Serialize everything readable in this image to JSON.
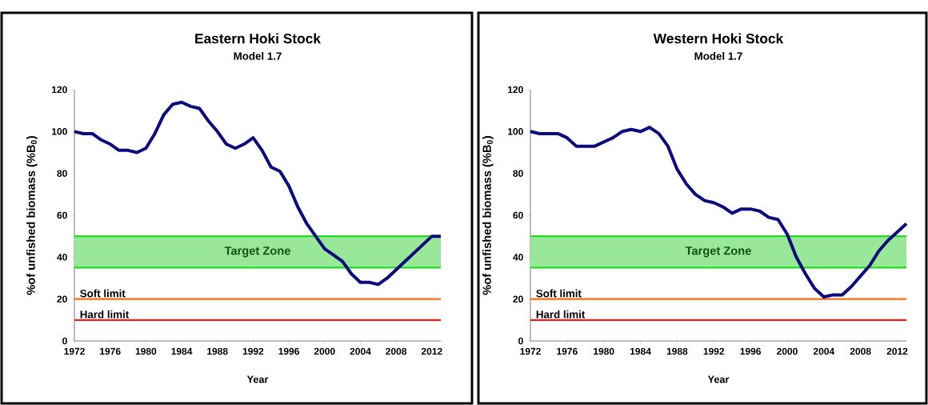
{
  "chart_data": [
    {
      "type": "line",
      "title": "Eastern Hoki Stock",
      "subtitle": "Model 1.7",
      "xlabel": "Year",
      "ylabel": "%of unfished biomass (%B$_{0}$)",
      "x": [
        1972,
        1973,
        1974,
        1975,
        1976,
        1977,
        1978,
        1979,
        1980,
        1981,
        1982,
        1983,
        1984,
        1985,
        1986,
        1987,
        1988,
        1989,
        1990,
        1991,
        1992,
        1993,
        1994,
        1995,
        1996,
        1997,
        1998,
        1999,
        2000,
        2001,
        2002,
        2003,
        2004,
        2005,
        2006,
        2007,
        2008,
        2009,
        2010,
        2011,
        2012,
        2013
      ],
      "series": [
        {
          "color": "#0b0b7e",
          "values": [
            100,
            99,
            99,
            96,
            94,
            91,
            91,
            90,
            92,
            99,
            108,
            113,
            114,
            112,
            111,
            105,
            100,
            94,
            92,
            94,
            97,
            91,
            83,
            81,
            74,
            64,
            56,
            50,
            44,
            41,
            38,
            32,
            28,
            28,
            27,
            30,
            34,
            38,
            42,
            46,
            50,
            50
          ]
        }
      ],
      "xlim": [
        1972,
        2013
      ],
      "ylim": [
        0,
        120
      ],
      "xticks": [
        1972,
        1976,
        1980,
        1984,
        1988,
        1992,
        1996,
        2000,
        2004,
        2008,
        2012
      ],
      "yticks": [
        0,
        20,
        40,
        60,
        80,
        100,
        120
      ],
      "bands": [
        {
          "axis": "y",
          "from": 35,
          "to": 50,
          "label": "Target Zone",
          "color": "#99e899"
        }
      ],
      "ref_lines": [
        {
          "axis": "y",
          "value": 50,
          "color": "#22dd22"
        },
        {
          "axis": "y",
          "value": 35,
          "color": "#22dd22"
        },
        {
          "axis": "y",
          "value": 20,
          "label": "Soft limit",
          "color": "#ff6a13"
        },
        {
          "axis": "y",
          "value": 10,
          "label": "Hard limit",
          "color": "#ff1a1a"
        }
      ]
    },
    {
      "type": "line",
      "title": "Western Hoki Stock",
      "subtitle": "Model 1.7",
      "xlabel": "Year",
      "ylabel": "%of unfished biomass (%B$_{0}$)",
      "x": [
        1972,
        1973,
        1974,
        1975,
        1976,
        1977,
        1978,
        1979,
        1980,
        1981,
        1982,
        1983,
        1984,
        1985,
        1986,
        1987,
        1988,
        1989,
        1990,
        1991,
        1992,
        1993,
        1994,
        1995,
        1996,
        1997,
        1998,
        1999,
        2000,
        2001,
        2002,
        2003,
        2004,
        2005,
        2006,
        2007,
        2008,
        2009,
        2010,
        2011,
        2012,
        2013
      ],
      "series": [
        {
          "color": "#0b0b7e",
          "values": [
            100,
            99,
            99,
            99,
            97,
            93,
            93,
            93,
            95,
            97,
            100,
            101,
            100,
            102,
            99,
            93,
            82,
            75,
            70,
            67,
            66,
            64,
            61,
            63,
            63,
            62,
            59,
            58,
            51,
            40,
            32,
            25,
            21,
            22,
            22,
            26,
            31,
            36,
            43,
            48,
            52,
            56
          ]
        }
      ],
      "xlim": [
        1972,
        2013
      ],
      "ylim": [
        0,
        120
      ],
      "xticks": [
        1972,
        1976,
        1980,
        1984,
        1988,
        1992,
        1996,
        2000,
        2004,
        2008,
        2012
      ],
      "yticks": [
        0,
        20,
        40,
        60,
        80,
        100,
        120
      ],
      "bands": [
        {
          "axis": "y",
          "from": 35,
          "to": 50,
          "label": "Target Zone",
          "color": "#99e899"
        }
      ],
      "ref_lines": [
        {
          "axis": "y",
          "value": 50,
          "color": "#22dd22"
        },
        {
          "axis": "y",
          "value": 35,
          "color": "#22dd22"
        },
        {
          "axis": "y",
          "value": 20,
          "label": "Soft limit",
          "color": "#ff6a13"
        },
        {
          "axis": "y",
          "value": 10,
          "label": "Hard limit",
          "color": "#ff1a1a"
        }
      ]
    }
  ]
}
